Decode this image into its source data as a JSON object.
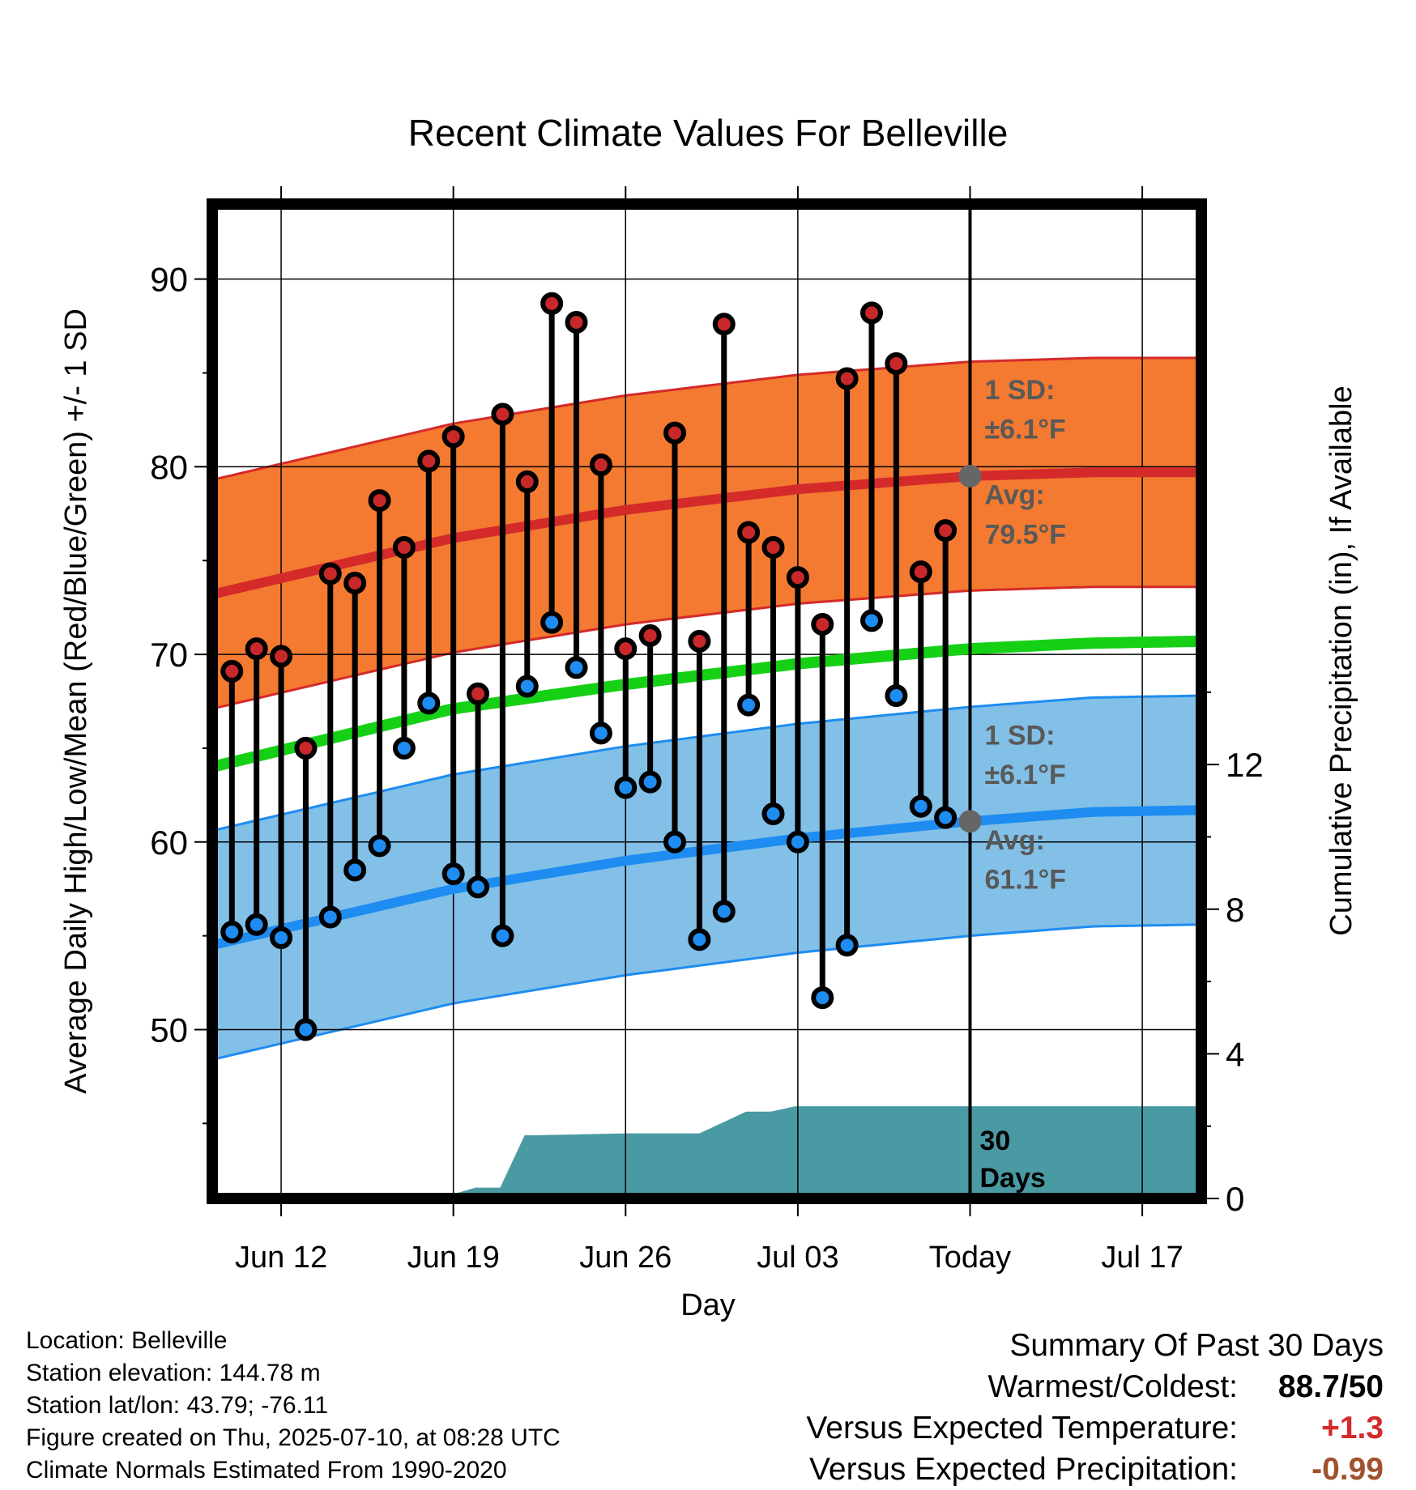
{
  "chart_data": {
    "type": "line",
    "title": "Recent Climate Values For Belleville",
    "xlabel": "Day",
    "ylabel": "Average Daily High/Low/Mean (Red/Blue/Green) +/- 1 SD",
    "y2label": "Cumulative Precipitation (in), If Available",
    "ylim": [
      41,
      94
    ],
    "y2lim": [
      0,
      27.5
    ],
    "yticks": [
      50,
      60,
      70,
      80,
      90
    ],
    "y2ticks": [
      0,
      4,
      8,
      12
    ],
    "xticks": [
      {
        "label": "Jun 12",
        "day": 2
      },
      {
        "label": "Jun 19",
        "day": 9
      },
      {
        "label": "Jun 26",
        "day": 16
      },
      {
        "label": "Jul 03",
        "day": 23
      },
      {
        "label": "Today",
        "day": 30
      },
      {
        "label": "Jul 17",
        "day": 37
      }
    ],
    "xlim": [
      -0.8,
      39.4
    ],
    "today_day": 30,
    "grid": true,
    "days": [
      "Jun 10",
      "Jun 11",
      "Jun 12",
      "Jun 13",
      "Jun 14",
      "Jun 15",
      "Jun 16",
      "Jun 17",
      "Jun 18",
      "Jun 19",
      "Jun 20",
      "Jun 21",
      "Jun 22",
      "Jun 23",
      "Jun 24",
      "Jun 25",
      "Jun 26",
      "Jun 27",
      "Jun 28",
      "Jun 29",
      "Jun 30",
      "Jul 01",
      "Jul 02",
      "Jul 03",
      "Jul 04",
      "Jul 05",
      "Jul 06",
      "Jul 07",
      "Jul 08",
      "Jul 09"
    ],
    "observed_high": [
      69.1,
      70.3,
      69.9,
      65.0,
      74.3,
      73.8,
      78.2,
      75.7,
      80.3,
      81.6,
      67.9,
      82.8,
      79.2,
      88.7,
      87.7,
      80.1,
      70.3,
      71.0,
      81.8,
      70.7,
      87.6,
      76.5,
      75.7,
      74.1,
      71.6,
      84.7,
      88.2,
      85.5,
      74.4,
      76.6
    ],
    "observed_low": [
      55.2,
      55.6,
      54.9,
      50.0,
      56.0,
      58.5,
      59.8,
      65.0,
      67.4,
      58.3,
      57.6,
      55.0,
      68.3,
      71.7,
      69.3,
      65.8,
      62.9,
      63.2,
      60.0,
      54.8,
      56.3,
      67.3,
      61.5,
      60.0,
      51.7,
      54.5,
      71.8,
      67.8,
      61.9,
      61.3
    ],
    "normal_days": [
      -0.8,
      9,
      16,
      23,
      30,
      35,
      39.4
    ],
    "normal_high": [
      73.2,
      76.2,
      77.7,
      78.8,
      79.5,
      79.7,
      79.7
    ],
    "normal_low": [
      54.5,
      57.5,
      59.0,
      60.2,
      61.1,
      61.6,
      61.7
    ],
    "normal_mean": [
      64.0,
      67.1,
      68.4,
      69.5,
      70.3,
      70.6,
      70.7
    ],
    "sd_high": 6.1,
    "sd_low": 6.1,
    "precip_days": [
      -0.8,
      8.6,
      8.9,
      9.9,
      10.9,
      11.9,
      12.4,
      16.0,
      19.0,
      20.9,
      21.9,
      22.9,
      23.9,
      39.4
    ],
    "precip_cum": [
      0.0,
      0.03,
      0.1,
      0.3,
      0.3,
      1.75,
      1.75,
      1.8,
      1.8,
      2.4,
      2.4,
      2.55,
      2.55,
      2.55
    ],
    "labels": {
      "sd_high_title": "1 SD:",
      "sd_high_value": "±6.1°F",
      "avg_high_title": "Avg:",
      "avg_high_value": "79.5°F",
      "sd_low_title": "1 SD:",
      "sd_low_value": "±6.1°F",
      "avg_low_title": "Avg:",
      "avg_low_value": "61.1°F",
      "precip_line1": "30",
      "precip_line2": "Days"
    },
    "colors": {
      "high_band": "#f37a30",
      "high_line": "#d42a2a",
      "low_band": "#82c0e8",
      "low_line": "#1e8cf0",
      "mean_line": "#16d016",
      "precip": "#4a9aa4",
      "high_marker": "#c8282a",
      "low_marker": "#1e8cf0",
      "annotation": "#595959",
      "today_marker": "#666666"
    }
  },
  "footer": {
    "location": "Location: Belleville",
    "elevation": "Station elevation: 144.78 m",
    "latlon": "Station lat/lon: 43.79; -76.11",
    "created": "Figure created on Thu, 2025-07-10, at 08:28 UTC",
    "normals": "Climate Normals Estimated From 1990-2020"
  },
  "summary": {
    "title": "Summary Of Past 30 Days",
    "warmest_label": "Warmest/Coldest:",
    "warmest_value": "88.7/50",
    "temp_label": "Versus Expected Temperature:",
    "temp_value": "+1.3",
    "temp_color": "#d42a2a",
    "precip_label": "Versus Expected Precipitation:",
    "precip_value": "-0.99",
    "precip_color": "#a0522d"
  }
}
